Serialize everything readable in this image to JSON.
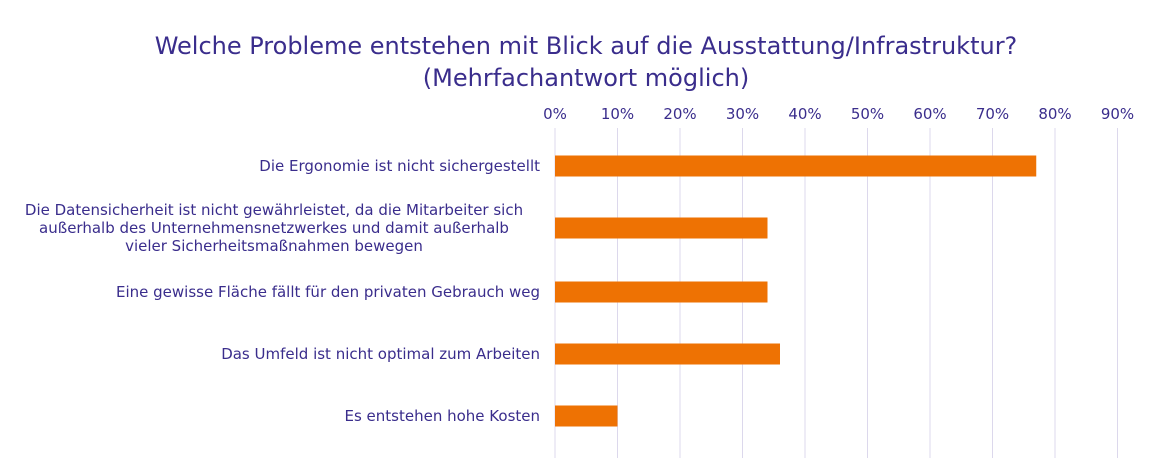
{
  "chart_data": {
    "type": "bar",
    "orientation": "horizontal",
    "title_lines": [
      "Welche Probleme entstehen mit Blick auf die Ausstattung/Infrastruktur?",
      "(Mehrfachantwort möglich)"
    ],
    "categories": [
      [
        "Die Ergonomie ist nicht sichergestellt"
      ],
      [
        "Die Datensicherheit ist nicht gewährleistet, da die Mitarbeiter sich",
        "außerhalb des Unternehmensnetzwerkes und damit außerhalb",
        "vieler Sicherheitsmaßnahmen bewegen"
      ],
      [
        "Eine gewisse Fläche fällt für den privaten Gebrauch weg"
      ],
      [
        "Das Umfeld ist nicht optimal zum Arbeiten"
      ],
      [
        "Es entstehen hohe Kosten"
      ]
    ],
    "values": [
      77,
      34,
      34,
      36,
      10
    ],
    "xlim": [
      0,
      90
    ],
    "ticks": [
      "0%",
      "10%",
      "20%",
      "30%",
      "40%",
      "50%",
      "60%",
      "70%",
      "80%",
      "90%"
    ],
    "axis_position": "top",
    "grid": true,
    "bar_color": "#ee7203",
    "grid_color": "#dcd8ec",
    "text_color": "#3a2d8c"
  }
}
